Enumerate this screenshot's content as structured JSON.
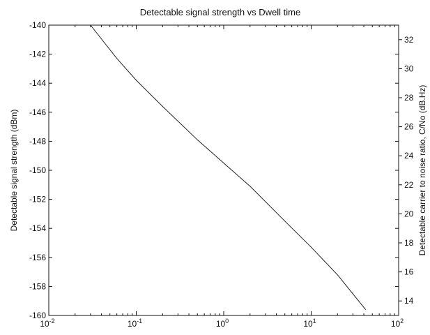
{
  "chart_data": {
    "type": "line",
    "title": "Detectable signal strength vs Dwell time",
    "xlabel": "",
    "ylabel": "Detectable signal strength (dBm)",
    "y2label": "Detectable carrier to noise ratio, C/No (dB.Hz)",
    "xscale": "log",
    "xlim": [
      0.01,
      100
    ],
    "ylim": [
      -160,
      -140
    ],
    "y2lim": [
      13,
      33
    ],
    "grid": false,
    "x_ticks": [
      {
        "base": "10",
        "exp": "-2",
        "value": 0.01
      },
      {
        "base": "10",
        "exp": "-1",
        "value": 0.1
      },
      {
        "base": "10",
        "exp": "0",
        "value": 1
      },
      {
        "base": "10",
        "exp": "1",
        "value": 10
      },
      {
        "base": "10",
        "exp": "2",
        "value": 100
      }
    ],
    "y_ticks": [
      "-140",
      "-142",
      "-144",
      "-146",
      "-148",
      "-150",
      "-152",
      "-154",
      "-156",
      "-158",
      "-160"
    ],
    "y2_ticks": [
      "32",
      "30",
      "28",
      "26",
      "24",
      "22",
      "20",
      "18",
      "16",
      "14"
    ],
    "series": [
      {
        "x": [
          0.03,
          0.06,
          0.1,
          0.2,
          0.5,
          1,
          2,
          5,
          10,
          20,
          42
        ],
        "y": [
          -140.0,
          -142.3,
          -143.8,
          -145.6,
          -147.9,
          -149.5,
          -151.1,
          -153.5,
          -155.3,
          -157.2,
          -159.6
        ]
      }
    ]
  }
}
